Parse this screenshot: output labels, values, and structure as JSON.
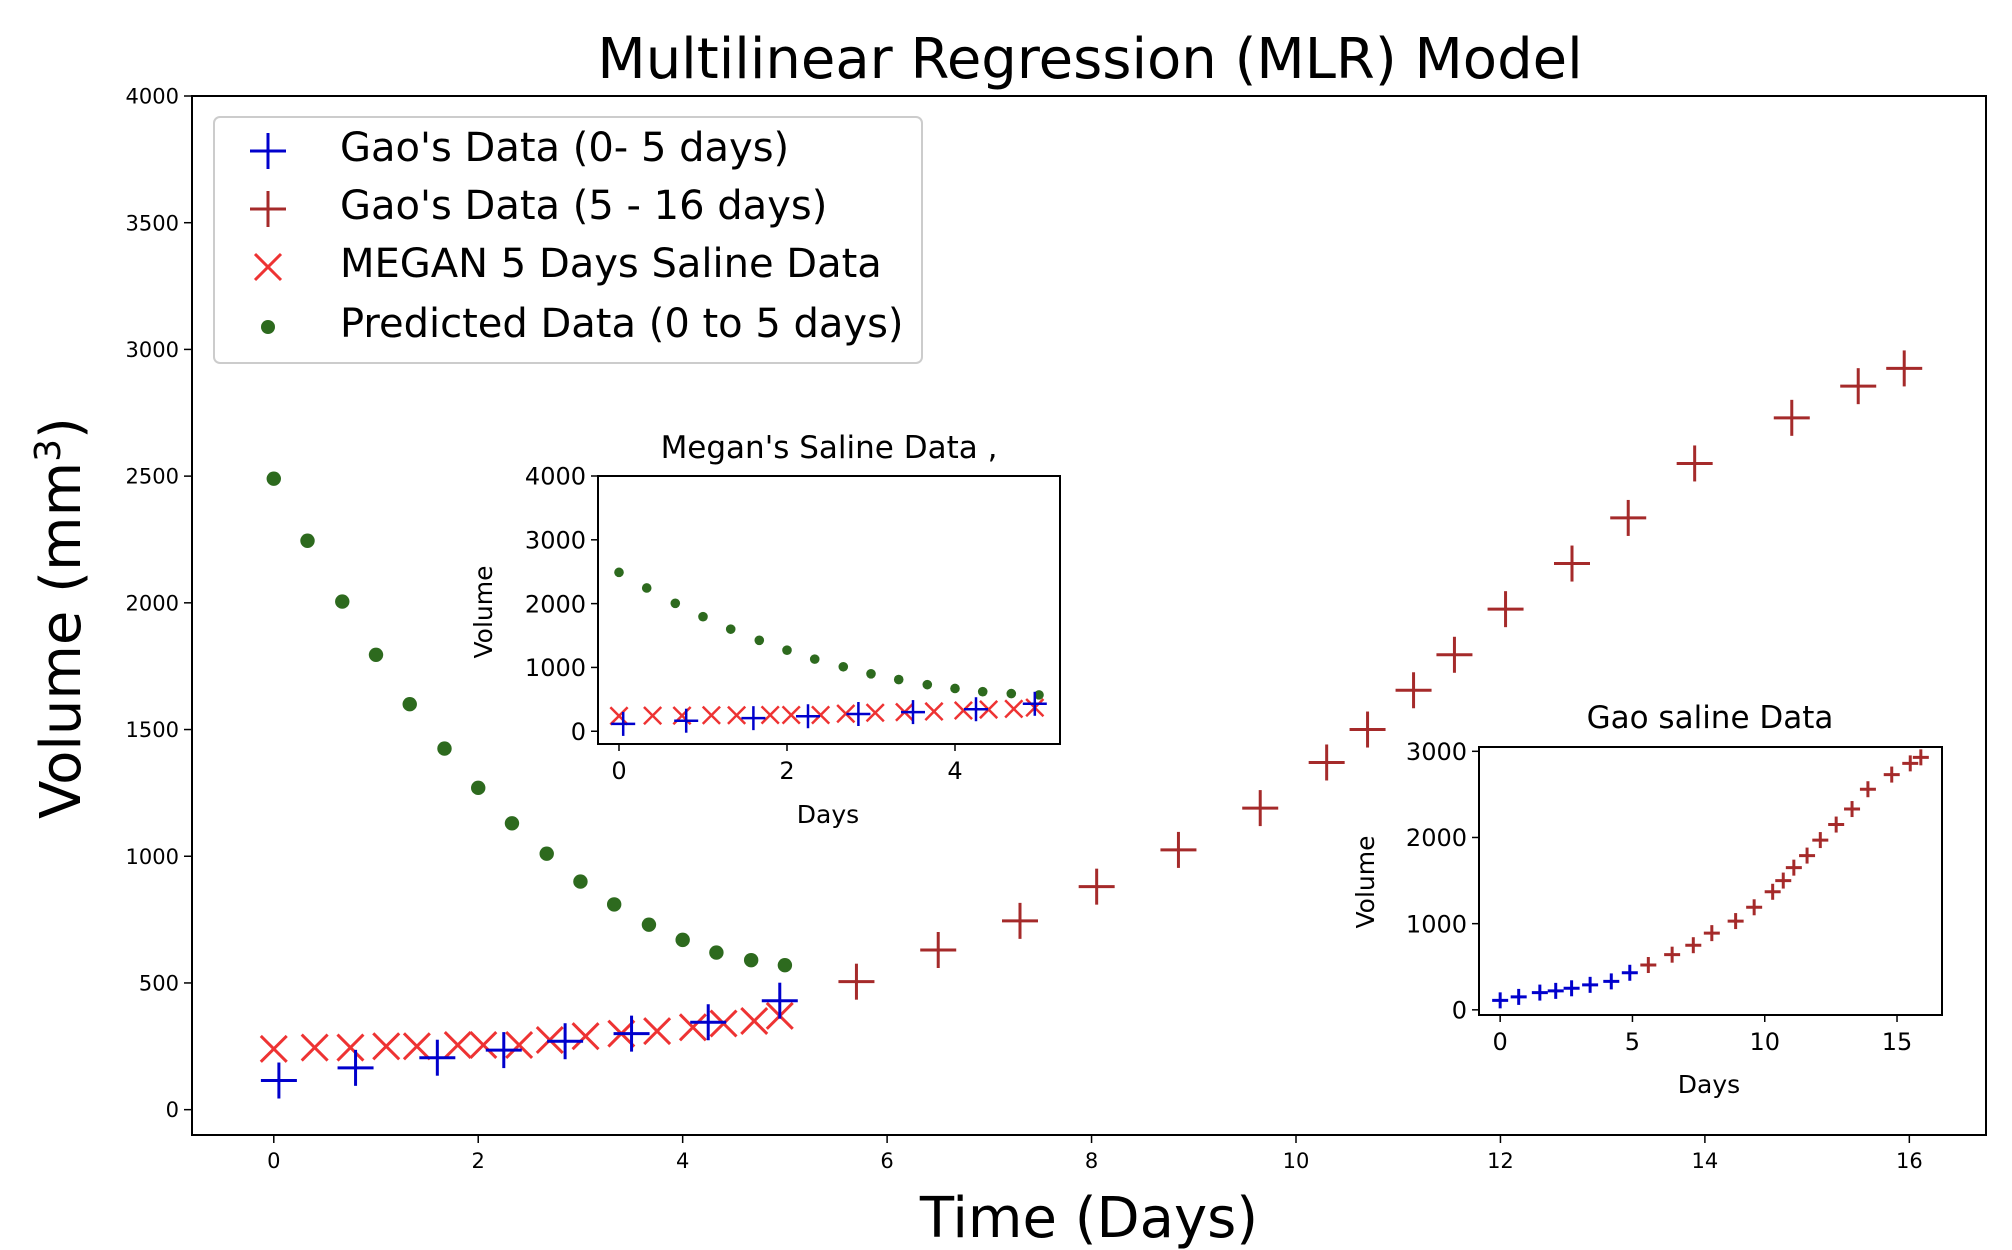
{
  "chart_data": [
    {
      "id": "main",
      "type": "scatter",
      "title": "Multilinear Regression (MLR) Model",
      "xlabel": "Time (Days)",
      "ylabel_main": "Volume (mm",
      "ylabel_sup": "3",
      "ylabel_close": ")",
      "xlim": [
        -0.8,
        16.75
      ],
      "ylim": [
        -100,
        4000
      ],
      "xticks": [
        0,
        2,
        4,
        6,
        8,
        10,
        12,
        14,
        16
      ],
      "yticks": [
        0,
        500,
        1000,
        1500,
        2000,
        2500,
        3000,
        3500,
        4000
      ],
      "legend_position": "top-left",
      "series": [
        {
          "name": "Gao's Data (0- 5 days)",
          "marker": "plus",
          "color": "#0000cc",
          "x": [
            0.05,
            0.8,
            1.6,
            2.25,
            2.85,
            3.5,
            4.25,
            4.95
          ],
          "y": [
            115,
            165,
            205,
            235,
            270,
            300,
            345,
            430
          ]
        },
        {
          "name": "Gao's Data (5 - 16 days)",
          "marker": "plus",
          "color": "#a52a2a",
          "x": [
            5.7,
            6.5,
            7.3,
            8.05,
            8.85,
            9.65,
            10.3,
            10.7,
            11.15,
            11.55,
            12.05,
            12.7,
            13.25,
            13.9,
            14.85,
            15.5,
            15.95
          ],
          "y": [
            505,
            630,
            745,
            880,
            1025,
            1190,
            1370,
            1500,
            1655,
            1795,
            1975,
            2155,
            2335,
            2550,
            2730,
            2855,
            2925
          ]
        },
        {
          "name": "MEGAN 5 Days Saline Data",
          "marker": "x",
          "color": "#ee3333",
          "x": [
            0,
            0.4,
            0.75,
            1.1,
            1.4,
            1.8,
            2.05,
            2.4,
            2.7,
            3.05,
            3.4,
            3.75,
            4.1,
            4.4,
            4.7,
            4.95
          ],
          "y": [
            240,
            245,
            245,
            250,
            250,
            255,
            255,
            255,
            275,
            290,
            300,
            310,
            325,
            340,
            350,
            370
          ]
        },
        {
          "name": "Predicted Data (0 to 5 days)",
          "marker": "dot",
          "color": "#2d6a1e",
          "x": [
            0,
            0.33,
            0.67,
            1.0,
            1.33,
            1.67,
            2.0,
            2.33,
            2.67,
            3.0,
            3.33,
            3.67,
            4.0,
            4.33,
            4.67,
            5.0
          ],
          "y": [
            2490,
            2245,
            2005,
            1795,
            1600,
            1425,
            1270,
            1130,
            1010,
            900,
            810,
            730,
            670,
            620,
            590,
            570
          ]
        }
      ]
    },
    {
      "id": "inset1",
      "type": "scatter",
      "title": "Megan's Saline  Data ,",
      "xlabel": "Days",
      "ylabel": "Volume",
      "xlim": [
        -0.25,
        5.25
      ],
      "ylim": [
        -200,
        4000
      ],
      "xticks": [
        0,
        2,
        4
      ],
      "yticks": [
        0,
        1000,
        2000,
        3000,
        4000
      ],
      "series_ref": "main-0-5"
    },
    {
      "id": "inset2",
      "type": "scatter",
      "title": "Gao saline Data",
      "xlabel": "Days",
      "ylabel": "Volume",
      "xlim": [
        -0.8,
        16.7
      ],
      "ylim": [
        -60,
        3050
      ],
      "xticks": [
        0,
        5,
        10,
        15
      ],
      "yticks": [
        0,
        1000,
        2000,
        3000
      ],
      "series": [
        {
          "name": "Gao's Data (0- 5 days)",
          "color": "#0000cc",
          "x": [
            0,
            0.7,
            1.5,
            2.1,
            2.7,
            3.4,
            4.2,
            4.9
          ],
          "y": [
            110,
            150,
            200,
            220,
            250,
            290,
            330,
            430
          ]
        },
        {
          "name": "Gao's Data (5 - 16 days)",
          "color": "#a52a2a",
          "x": [
            5.6,
            6.5,
            7.3,
            8.0,
            8.9,
            9.6,
            10.3,
            10.7,
            11.1,
            11.6,
            12.1,
            12.7,
            13.3,
            13.9,
            14.8,
            15.5,
            15.9
          ],
          "y": [
            520,
            640,
            750,
            890,
            1030,
            1190,
            1370,
            1500,
            1650,
            1790,
            1970,
            2150,
            2330,
            2560,
            2730,
            2860,
            2930
          ]
        }
      ]
    }
  ]
}
